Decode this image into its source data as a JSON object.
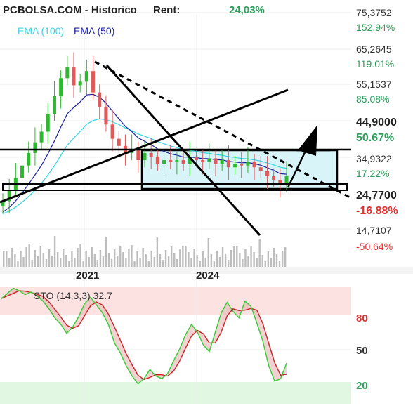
{
  "header": {
    "source": "PCBOLSA.COM - Historico",
    "rent_label": "Rent:",
    "rent_value": "24,03%"
  },
  "legend": {
    "ema100": "EMA (100)",
    "ema50": "EMA (50)"
  },
  "price_axis": [
    {
      "price": "75,3752",
      "pct": "152.94%",
      "pct_color": "#2e9e5b",
      "bold": false
    },
    {
      "price": "65,2645",
      "pct": "119.01%",
      "pct_color": "#2e9e5b",
      "bold": false
    },
    {
      "price": "55,1537",
      "pct": "85.08%",
      "pct_color": "#2e9e5b",
      "bold": false
    },
    {
      "price": "44,9000",
      "pct": "50.67%",
      "pct_color": "#2e9e5b",
      "bold": true
    },
    {
      "price": "34,9322",
      "pct": "17.22%",
      "pct_color": "#2e9e5b",
      "bold": false
    },
    {
      "price": "24,7700",
      "pct": "-16.88%",
      "pct_color": "#e03030",
      "bold": true
    },
    {
      "price": "14,7107",
      "pct": "-50.64%",
      "pct_color": "#e03030",
      "bold": false
    }
  ],
  "x_axis": [
    "2021",
    "2024"
  ],
  "oscillator": {
    "label": "STO (14,3,3) 32.7",
    "levels": [
      "80",
      "50",
      "20"
    ]
  },
  "colors": {
    "up_candle": "#2eb82e",
    "down_candle": "#e05a5a",
    "ema100": "#33d6e6",
    "ema50": "#1a1f9e",
    "volume": "#bdbdbd",
    "overbought_zone": "#fde2e2",
    "oversold_zone": "#e2f7e2",
    "box_fill": "#d9f4f8",
    "k_line": "#33cc33",
    "d_line": "#cc2222"
  },
  "chart_data": [
    {
      "type": "candlestick",
      "title": "",
      "y_axis_labels": [
        "75,3752",
        "65,2645",
        "55,1537",
        "44,9000",
        "34,9322",
        "24,7700",
        "14,7107"
      ],
      "ylim": [
        14.7107,
        75.3752
      ],
      "x_ticks": [
        "2021",
        "2024"
      ],
      "series": [
        {
          "name": "EMA (100)"
        },
        {
          "name": "EMA (50)"
        }
      ],
      "close_series": [
        22.5,
        25.5,
        29,
        32.5,
        36,
        39,
        42,
        47,
        52,
        57,
        60,
        55,
        56,
        59,
        53,
        49,
        44,
        40,
        38,
        36,
        37,
        34,
        36,
        35,
        33,
        34,
        33.5,
        34,
        33,
        35,
        34,
        33.5,
        34.5,
        33,
        34,
        32,
        33,
        32.5,
        33.5,
        32,
        31,
        29.5,
        28.5,
        27,
        29.5
      ],
      "horizontal_levels": [
        44.9,
        24.77
      ],
      "note": "price history with drawn trendlines, a consolidation box and volume bars"
    },
    {
      "type": "line",
      "title": "STO (14,3,3) 32.7",
      "y_levels": [
        80,
        50,
        20
      ],
      "ylim": [
        0,
        100
      ],
      "k_values": [
        82,
        86,
        90,
        88,
        85,
        87,
        84,
        80,
        74,
        67,
        62,
        55,
        60,
        68,
        78,
        83,
        77,
        71,
        62,
        48,
        40,
        30,
        22,
        16,
        20,
        27,
        22,
        20,
        24,
        34,
        43,
        54,
        62,
        56,
        46,
        41,
        56,
        71,
        79,
        72,
        67,
        80,
        76,
        63,
        49,
        30,
        18,
        20,
        32
      ]
    }
  ]
}
